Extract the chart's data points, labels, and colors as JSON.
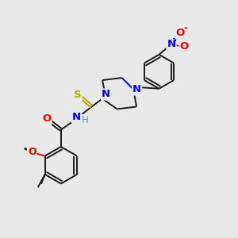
{
  "background_color": "#e8e8e8",
  "bond_color": "#1a1a1a",
  "N_color": "#0000ee",
  "O_color": "#ee0000",
  "S_color": "#aaaa00",
  "H_color": "#778899",
  "lw": 1.4,
  "fs": 8.5,
  "xlim": [
    0,
    10
  ],
  "ylim": [
    0,
    10
  ],
  "figsize": [
    3.0,
    3.0
  ],
  "dpi": 100
}
